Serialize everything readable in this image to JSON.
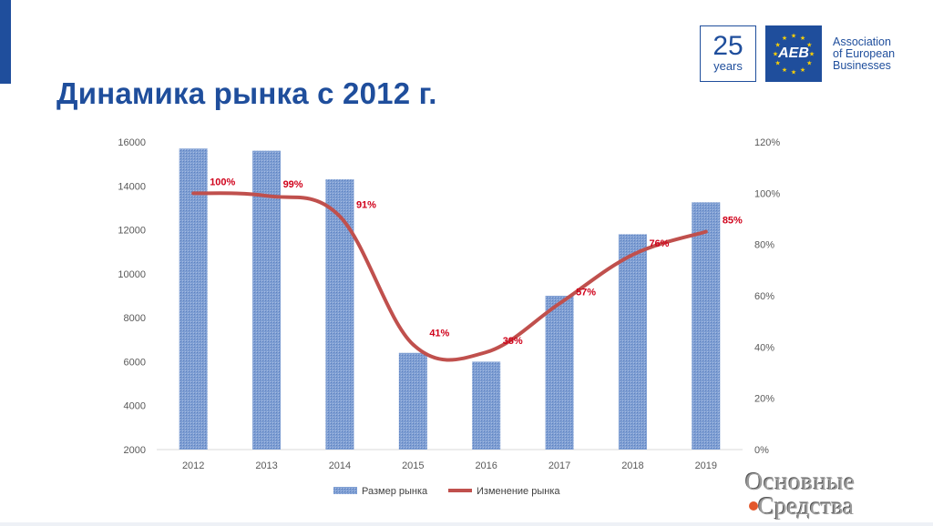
{
  "slide": {
    "title": "Динамика рынка с 2012 г."
  },
  "logo": {
    "years_number": "25",
    "years_label": "years",
    "aeb_abbr": "AEB",
    "name_lines": [
      "Association",
      "of European",
      "Businesses"
    ]
  },
  "watermark": {
    "line1": "Основные",
    "line2": "Средства"
  },
  "colors": {
    "title": "#1f4e9c",
    "bars": "#7f9fd3",
    "line": "#c0504d",
    "data_labels": "#d0021b"
  },
  "chart_data": {
    "type": "bar",
    "categories": [
      "2012",
      "2013",
      "2014",
      "2015",
      "2016",
      "2017",
      "2018",
      "2019"
    ],
    "series": [
      {
        "name": "Размер рынка",
        "type": "bar",
        "axis": "left",
        "values": [
          15700,
          15600,
          14300,
          6400,
          6000,
          9000,
          11800,
          13250
        ]
      },
      {
        "name": "Изменение рынка",
        "type": "line",
        "axis": "right",
        "smooth": true,
        "values": [
          100,
          99,
          91,
          41,
          38,
          57,
          76,
          85
        ],
        "labels": [
          "100%",
          "99%",
          "91%",
          "41%",
          "38%",
          "57%",
          "76%",
          "85%"
        ]
      }
    ],
    "y_left": {
      "ylim": [
        2000,
        16000
      ],
      "ticks": [
        "2000",
        "4000",
        "6000",
        "8000",
        "10000",
        "12000",
        "14000",
        "16000"
      ]
    },
    "y_right": {
      "ylim": [
        0,
        120
      ],
      "ticks": [
        "0%",
        "20%",
        "40%",
        "60%",
        "80%",
        "100%",
        "120%"
      ]
    },
    "grid": false,
    "legend": "bottom"
  }
}
